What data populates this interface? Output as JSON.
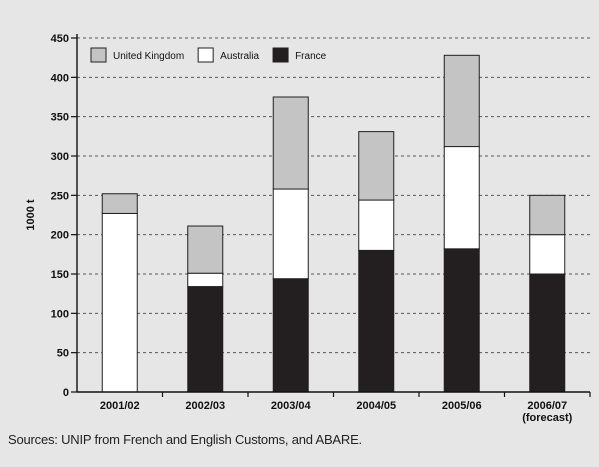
{
  "chart_data": {
    "type": "bar",
    "stacked": true,
    "categories": [
      "2001/02",
      "2002/03",
      "2003/04",
      "2004/05",
      "2005/06",
      "2006/07"
    ],
    "category_sublabels": [
      "",
      "",
      "",
      "",
      "",
      "(forecast)"
    ],
    "series": [
      {
        "name": "France",
        "color": "#231f20",
        "values": [
          0,
          134,
          144,
          180,
          182,
          150
        ]
      },
      {
        "name": "Australia",
        "color": "#ffffff",
        "values": [
          227,
          17,
          114,
          64,
          130,
          50
        ]
      },
      {
        "name": "United Kingdom",
        "color": "#c4c4c4",
        "values": [
          25,
          60,
          117,
          87,
          116,
          50
        ]
      }
    ],
    "legend_order": [
      "United Kingdom",
      "Australia",
      "France"
    ],
    "legend_position": "top-left",
    "ylabel": "1000 t",
    "xlabel": "",
    "ylim": [
      0,
      450
    ],
    "yticks": [
      0,
      50,
      100,
      150,
      200,
      250,
      300,
      350,
      400,
      450
    ],
    "grid": "horizontal-dashed"
  },
  "source_note": "Sources: UNIP from French and English Customs, and ABARE."
}
